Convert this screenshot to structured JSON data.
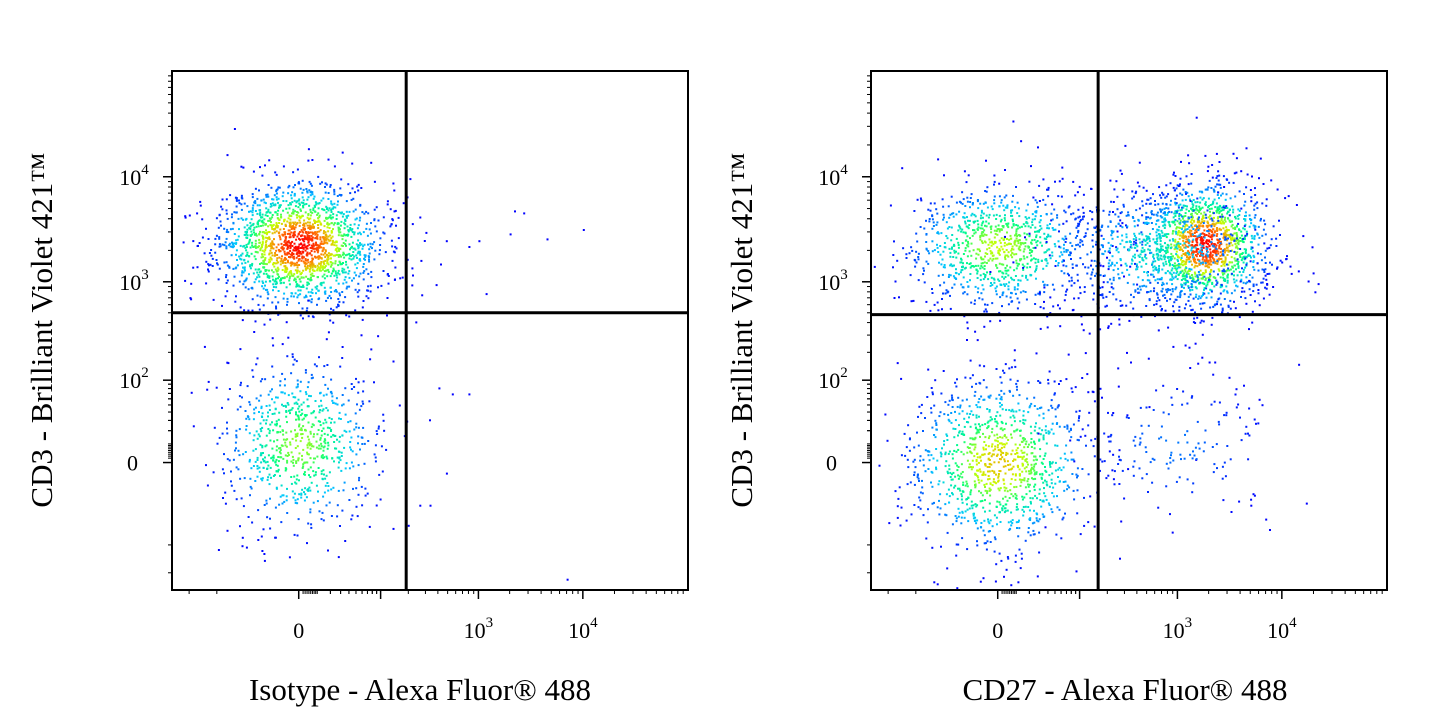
{
  "chart_data": [
    {
      "type": "scatter",
      "subtype": "flow-cytometry-density-dot-plot",
      "xlabel": "Isotype - Alexa Fluor® 488",
      "ylabel": "CD3 - Brilliant Violet 421™",
      "xscale": "biexponential",
      "yscale": "biexponential",
      "xlim": [
        -300,
        100000
      ],
      "ylim": [
        -300,
        100000
      ],
      "x_ticks": [
        {
          "value": 0,
          "base": "0",
          "exp": ""
        },
        {
          "value": 1000,
          "base": "10",
          "exp": "3"
        },
        {
          "value": 10000,
          "base": "10",
          "exp": "4"
        }
      ],
      "y_ticks": [
        {
          "value": 0,
          "base": "0",
          "exp": ""
        },
        {
          "value": 100,
          "base": "10",
          "exp": "2"
        },
        {
          "value": 1000,
          "base": "10",
          "exp": "3"
        },
        {
          "value": 10000,
          "base": "10",
          "exp": "4"
        }
      ],
      "quadrant_gate": {
        "x": 190,
        "y": 500
      },
      "colormap": [
        "#0000ff",
        "#00c8ff",
        "#00ff80",
        "#c8ff00",
        "#ff8000",
        "#ff0000"
      ],
      "grid": false,
      "populations": [
        {
          "name": "",
          "x_center": 0,
          "y_center": 2300,
          "x_spread": 0.7,
          "y_spread": 0.65,
          "count": 1800,
          "peak_density": 1.0
        },
        {
          "name": "",
          "x_center": 0,
          "y_center": 10,
          "x_spread": 0.7,
          "y_spread": 0.9,
          "count": 750,
          "peak_density": 0.55
        }
      ],
      "sparse_events": [
        [
          260,
          4200
        ],
        [
          300,
          3000
        ],
        [
          420,
          1500
        ],
        [
          380,
          950
        ],
        [
          480,
          2500
        ],
        [
          800,
          2200
        ],
        [
          1000,
          2500
        ],
        [
          2200,
          4800
        ],
        [
          2700,
          4600
        ],
        [
          2000,
          2900
        ],
        [
          4500,
          2600
        ],
        [
          10000,
          3200
        ],
        [
          550,
          70
        ],
        [
          800,
          70
        ],
        [
          260,
          -30
        ],
        [
          330,
          -30
        ],
        [
          7000,
          -230
        ]
      ]
    },
    {
      "type": "scatter",
      "subtype": "flow-cytometry-density-dot-plot",
      "xlabel": "CD27 - Alexa Fluor® 488",
      "ylabel": "CD3 - Brilliant Violet 421™",
      "xscale": "biexponential",
      "yscale": "biexponential",
      "xlim": [
        -300,
        100000
      ],
      "ylim": [
        -300,
        100000
      ],
      "x_ticks": [
        {
          "value": 0,
          "base": "0",
          "exp": ""
        },
        {
          "value": 1000,
          "base": "10",
          "exp": "3"
        },
        {
          "value": 10000,
          "base": "10",
          "exp": "4"
        }
      ],
      "y_ticks": [
        {
          "value": 0,
          "base": "0",
          "exp": ""
        },
        {
          "value": 100,
          "base": "10",
          "exp": "2"
        },
        {
          "value": 1000,
          "base": "10",
          "exp": "3"
        },
        {
          "value": 10000,
          "base": "10",
          "exp": "4"
        }
      ],
      "quadrant_gate": {
        "x": 160,
        "y": 480
      },
      "colormap": [
        "#0000ff",
        "#00c8ff",
        "#00ff80",
        "#c8ff00",
        "#ff8000",
        "#ff0000"
      ],
      "grid": false,
      "populations": [
        {
          "name": "",
          "x_center": 0,
          "y_center": 2200,
          "x_spread": 0.8,
          "y_spread": 0.65,
          "count": 950,
          "peak_density": 0.6
        },
        {
          "name": "",
          "x_center": 1800,
          "y_center": 2300,
          "x_spread": 0.55,
          "y_spread": 0.65,
          "count": 1300,
          "peak_density": 1.0
        },
        {
          "name": "",
          "x_center": 600,
          "y_center": 2000,
          "x_spread": 0.9,
          "y_spread": 0.7,
          "count": 700,
          "peak_density": 0.3
        },
        {
          "name": "",
          "x_center": 0,
          "y_center": 0,
          "x_spread": 0.8,
          "y_spread": 0.9,
          "count": 1100,
          "peak_density": 0.7
        },
        {
          "name": "",
          "x_center": 900,
          "y_center": 10,
          "x_spread": 0.9,
          "y_spread": 0.8,
          "count": 160,
          "peak_density": 0.12
        }
      ],
      "sparse_events": [
        [
          300,
          20000
        ],
        [
          1500,
          37000
        ],
        [
          400,
          9000
        ],
        [
          5000,
          6000
        ],
        [
          1300,
          140
        ],
        [
          1700,
          180
        ],
        [
          2000,
          160
        ],
        [
          6000,
          60
        ],
        [
          5000,
          -30
        ]
      ]
    }
  ]
}
